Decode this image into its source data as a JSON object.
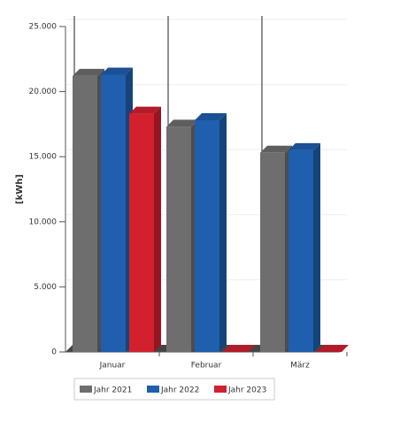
{
  "chart_data": {
    "type": "bar3d",
    "y_label": "[kWh]",
    "categories": [
      "Januar",
      "Februar",
      "März"
    ],
    "series": [
      {
        "name": "Jahr 2021",
        "color": "#6e6e6e",
        "values": [
          21200,
          17300,
          15300
        ]
      },
      {
        "name": "Jahr 2022",
        "color": "#1f5fae",
        "values": [
          21300,
          17800,
          15500
        ]
      },
      {
        "name": "Jahr 2023",
        "color": "#d3202f",
        "values": [
          18300,
          0,
          0
        ]
      }
    ],
    "ylim": [
      0,
      25000
    ],
    "yticks": [
      0,
      {
        "value": 5000,
        "label": "5.000"
      },
      {
        "value": 10000,
        "label": "10.000"
      },
      {
        "value": 15000,
        "label": "15.000"
      },
      {
        "value": 20000,
        "label": "20.000"
      },
      {
        "value": 25000,
        "label": "25.000"
      }
    ],
    "grid": true
  }
}
